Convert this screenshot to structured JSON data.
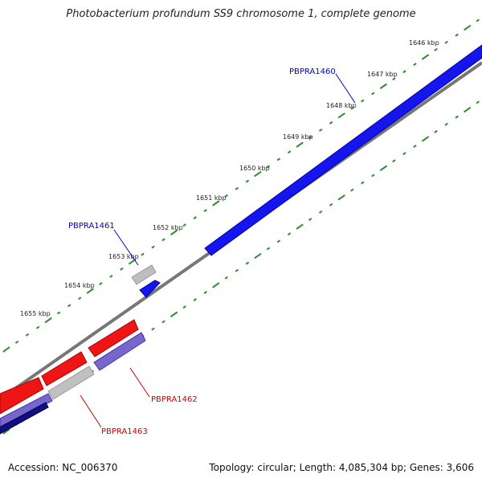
{
  "title": "Photobacterium profundum SS9 chromosome 1, complete genome",
  "footer": {
    "accession": "Accession: NC_006370",
    "summary": "Topology: circular; Length: 4,085,304 bp; Genes: 3,606"
  },
  "scale_labels": [
    "1646 kbp",
    "1647 kbp",
    "1648 kbp",
    "1649 kbp",
    "1650 kbp",
    "1651 kbp",
    "1652 kbp",
    "1653 kbp",
    "1654 kbp",
    "1655 kbp"
  ],
  "genes": [
    {
      "id": "PBPRA1460",
      "color": "#0000cc"
    },
    {
      "id": "PBPRA1461",
      "color": "#0000cc"
    },
    {
      "id": "PBPRA1462",
      "color": "#cc0000"
    },
    {
      "id": "PBPRA1463",
      "color": "#cc0000"
    }
  ],
  "colors": {
    "forward": "#1010ee",
    "reverse": "#ee1010",
    "gray": "#b8b8b8",
    "rna": "#7766cc",
    "navy": "#101080",
    "backbone": "#777777",
    "ticks": "#2e8b2e"
  }
}
